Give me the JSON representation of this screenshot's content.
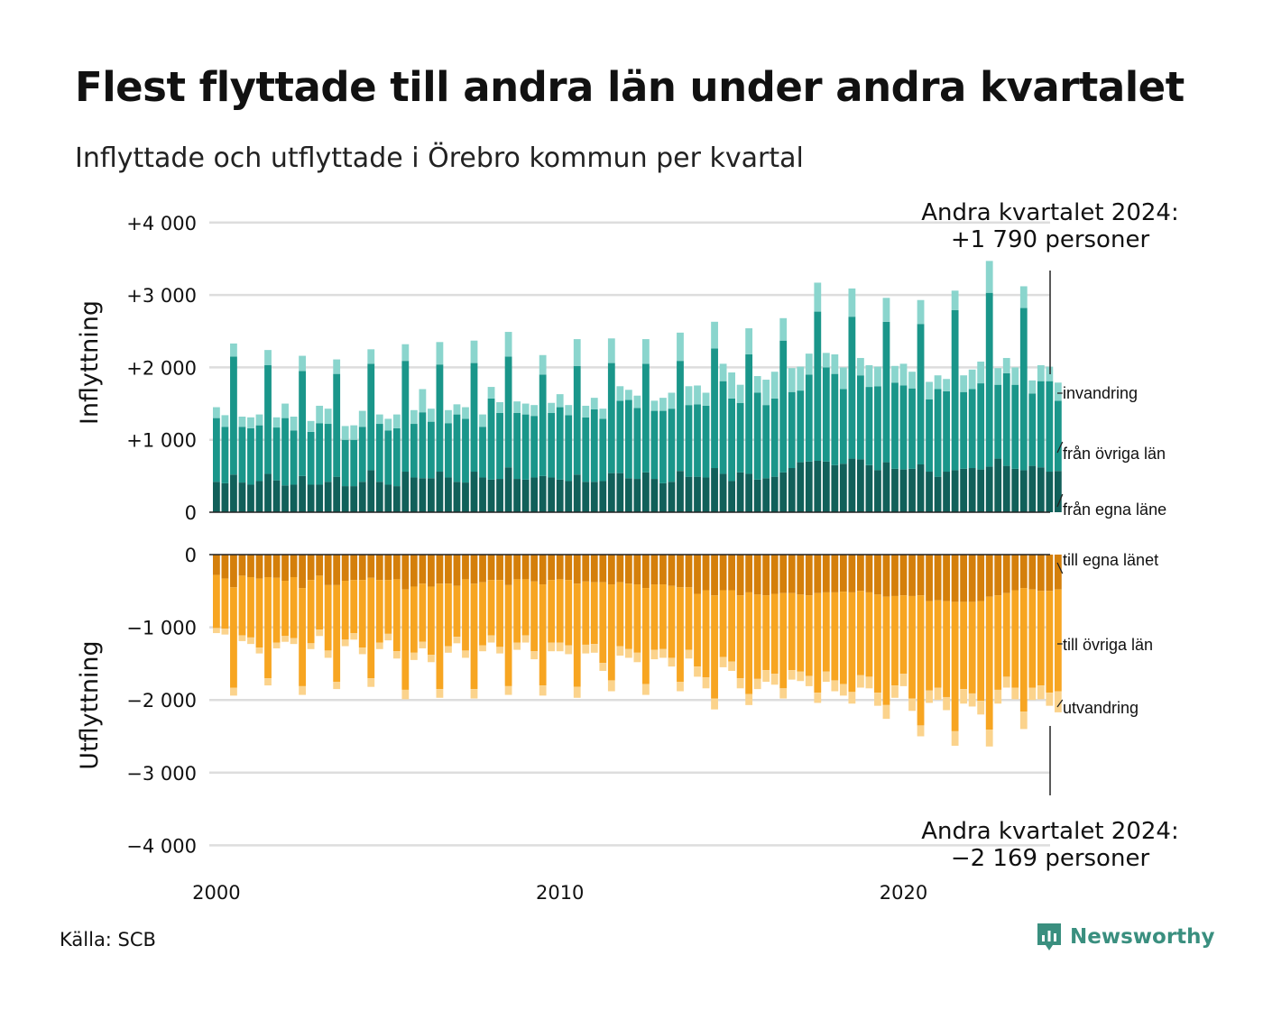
{
  "title": "Flest flyttade till andra län under andra kvartalet",
  "subtitle": "Inflyttade och utflyttade i Örebro kommun per kvartal",
  "source": "Källa: SCB",
  "brand": "Newsworthy",
  "colors": {
    "inflow_local": "#11605a",
    "inflow_other": "#1a968a",
    "inflow_imm": "#8ad5cd",
    "outflow_local": "#d47f0b",
    "outflow_other": "#f7a521",
    "outflow_emig": "#fbd38c",
    "grid": "#dddddd",
    "brand": "#3a8f7f"
  },
  "chart_data": [
    {
      "type": "bar",
      "stacked": true,
      "ylabel": "Inflyttning",
      "ylim": [
        0,
        4000
      ],
      "yticks": [
        0,
        1000,
        2000,
        3000,
        4000
      ],
      "ytick_labels": [
        "0",
        "+1 000",
        "+2 000",
        "+3 000",
        "+4 000"
      ],
      "annotation": [
        "Andra kvartalet 2024:",
        "+1 790 personer"
      ],
      "series": [
        {
          "name": "från egna länet",
          "label": "från egna läne",
          "values": [
            420,
            400,
            520,
            410,
            380,
            430,
            530,
            440,
            370,
            380,
            500,
            380,
            380,
            420,
            490,
            360,
            360,
            420,
            580,
            420,
            380,
            360,
            560,
            480,
            470,
            470,
            560,
            480,
            420,
            410,
            560,
            480,
            450,
            460,
            620,
            460,
            450,
            480,
            500,
            480,
            450,
            430,
            520,
            420,
            420,
            430,
            540,
            540,
            470,
            460,
            550,
            460,
            400,
            420,
            570,
            490,
            490,
            480,
            610,
            530,
            430,
            550,
            530,
            450,
            470,
            490,
            550,
            610,
            690,
            700,
            710,
            700,
            650,
            670,
            740,
            730,
            650,
            580,
            690,
            600,
            590,
            600,
            660,
            560,
            490,
            560,
            580,
            600,
            610,
            590,
            630,
            740,
            640,
            600,
            580,
            640,
            620,
            560,
            570
          ]
        },
        {
          "name": "från övriga län",
          "label": "från övriga län",
          "values": [
            880,
            780,
            1630,
            770,
            780,
            770,
            1500,
            730,
            930,
            750,
            1450,
            730,
            850,
            800,
            1420,
            640,
            640,
            760,
            1470,
            800,
            750,
            800,
            1530,
            740,
            910,
            780,
            1480,
            750,
            930,
            880,
            1500,
            700,
            1120,
            910,
            1530,
            910,
            900,
            850,
            1400,
            890,
            1000,
            910,
            1500,
            890,
            1000,
            860,
            1520,
            1000,
            1080,
            980,
            1500,
            940,
            1000,
            1010,
            1520,
            990,
            1000,
            990,
            1650,
            1280,
            1140,
            960,
            1650,
            1200,
            1010,
            1080,
            1820,
            1050,
            990,
            1200,
            2060,
            1300,
            1260,
            1030,
            1960,
            1160,
            1080,
            1160,
            1940,
            1190,
            1160,
            1110,
            1940,
            1000,
            1210,
            1110,
            2210,
            1060,
            1090,
            1190,
            2400,
            1020,
            1280,
            1160,
            2240,
            1000,
            1190,
            1250,
            970
          ]
        },
        {
          "name": "invandring",
          "label": "invandring",
          "values": [
            150,
            160,
            180,
            140,
            150,
            150,
            210,
            140,
            200,
            190,
            210,
            150,
            240,
            210,
            200,
            190,
            200,
            220,
            200,
            130,
            160,
            190,
            230,
            190,
            320,
            180,
            310,
            180,
            140,
            160,
            310,
            170,
            160,
            150,
            340,
            160,
            150,
            150,
            270,
            140,
            180,
            140,
            370,
            160,
            160,
            140,
            340,
            200,
            140,
            170,
            340,
            140,
            180,
            220,
            390,
            260,
            260,
            180,
            370,
            240,
            360,
            250,
            360,
            230,
            350,
            370,
            310,
            330,
            330,
            290,
            400,
            200,
            270,
            300,
            390,
            240,
            300,
            270,
            330,
            230,
            300,
            230,
            330,
            240,
            190,
            170,
            270,
            230,
            270,
            300,
            440,
            230,
            210,
            240,
            300,
            180,
            220,
            200,
            250
          ]
        }
      ]
    },
    {
      "type": "bar",
      "stacked": true,
      "ylabel": "Utflyttning",
      "ylim": [
        -4000,
        0
      ],
      "yticks": [
        0,
        -1000,
        -2000,
        -3000,
        -4000
      ],
      "ytick_labels": [
        "0",
        "−1 000",
        "−2 000",
        "−3 000",
        "−4 000"
      ],
      "annotation": [
        "Andra kvartalet 2024:",
        "−2 169 personer"
      ],
      "series": [
        {
          "name": "till egna länet",
          "label": "till egna länet",
          "values": [
            -280,
            -330,
            -450,
            -290,
            -310,
            -330,
            -310,
            -320,
            -360,
            -310,
            -460,
            -350,
            -290,
            -420,
            -420,
            -360,
            -350,
            -350,
            -320,
            -350,
            -350,
            -340,
            -480,
            -440,
            -400,
            -440,
            -400,
            -400,
            -430,
            -340,
            -400,
            -380,
            -350,
            -350,
            -420,
            -340,
            -340,
            -370,
            -410,
            -350,
            -340,
            -350,
            -400,
            -370,
            -380,
            -380,
            -410,
            -380,
            -400,
            -410,
            -460,
            -410,
            -410,
            -430,
            -450,
            -450,
            -540,
            -490,
            -560,
            -490,
            -490,
            -560,
            -520,
            -550,
            -560,
            -540,
            -530,
            -530,
            -550,
            -560,
            -530,
            -520,
            -520,
            -510,
            -520,
            -500,
            -520,
            -550,
            -580,
            -570,
            -560,
            -570,
            -560,
            -640,
            -630,
            -640,
            -650,
            -650,
            -650,
            -640,
            -580,
            -560,
            -530,
            -490,
            -460,
            -480,
            -500,
            -500,
            -480
          ]
        },
        {
          "name": "till övriga län",
          "label": "till övriga län",
          "values": [
            -730,
            -690,
            -1380,
            -820,
            -830,
            -950,
            -1390,
            -890,
            -760,
            -840,
            -1350,
            -870,
            -740,
            -900,
            -1330,
            -810,
            -730,
            -930,
            -1380,
            -860,
            -740,
            -990,
            -1380,
            -910,
            -800,
            -940,
            -1450,
            -860,
            -700,
            -980,
            -1450,
            -870,
            -760,
            -920,
            -1390,
            -870,
            -770,
            -960,
            -1390,
            -860,
            -870,
            -900,
            -1420,
            -870,
            -850,
            -1110,
            -1320,
            -880,
            -900,
            -940,
            -1320,
            -900,
            -890,
            -990,
            -1300,
            -860,
            -1000,
            -1200,
            -1420,
            -920,
            -980,
            -1140,
            -1400,
            -1160,
            -1030,
            -1100,
            -1310,
            -1060,
            -1060,
            -1110,
            -1370,
            -1090,
            -1210,
            -1270,
            -1370,
            -1160,
            -1160,
            -1350,
            -1490,
            -1230,
            -1080,
            -1410,
            -1790,
            -1230,
            -1200,
            -1320,
            -1780,
            -1200,
            -1260,
            -1370,
            -1830,
            -1300,
            -1150,
            -1340,
            -1700,
            -1350,
            -1300,
            -1400,
            -1400
          ]
        },
        {
          "name": "utvandring",
          "label": "utvandring",
          "values": [
            -70,
            -80,
            -110,
            -80,
            -90,
            -80,
            -100,
            -80,
            -80,
            -80,
            -120,
            -80,
            -90,
            -100,
            -100,
            -90,
            -90,
            -90,
            -120,
            -90,
            -90,
            -100,
            -130,
            -100,
            -90,
            -100,
            -120,
            -90,
            -90,
            -100,
            -130,
            -80,
            -100,
            -90,
            -120,
            -100,
            -100,
            -110,
            -140,
            -120,
            -120,
            -120,
            -150,
            -120,
            -120,
            -110,
            -150,
            -130,
            -120,
            -130,
            -150,
            -130,
            -120,
            -120,
            -130,
            -120,
            -140,
            -150,
            -150,
            -140,
            -130,
            -140,
            -150,
            -140,
            -160,
            -150,
            -140,
            -130,
            -130,
            -140,
            -140,
            -140,
            -150,
            -160,
            -160,
            -170,
            -160,
            -180,
            -190,
            -170,
            -170,
            -170,
            -150,
            -170,
            -170,
            -180,
            -200,
            -200,
            -180,
            -190,
            -230,
            -190,
            -150,
            -160,
            -240,
            -170,
            -190,
            -180,
            -290
          ]
        }
      ]
    }
  ],
  "x_axis": {
    "start_year": 2000,
    "tick_labels": [
      "2000",
      "2010",
      "2020"
    ],
    "tick_years": [
      2000,
      2010,
      2020
    ]
  }
}
